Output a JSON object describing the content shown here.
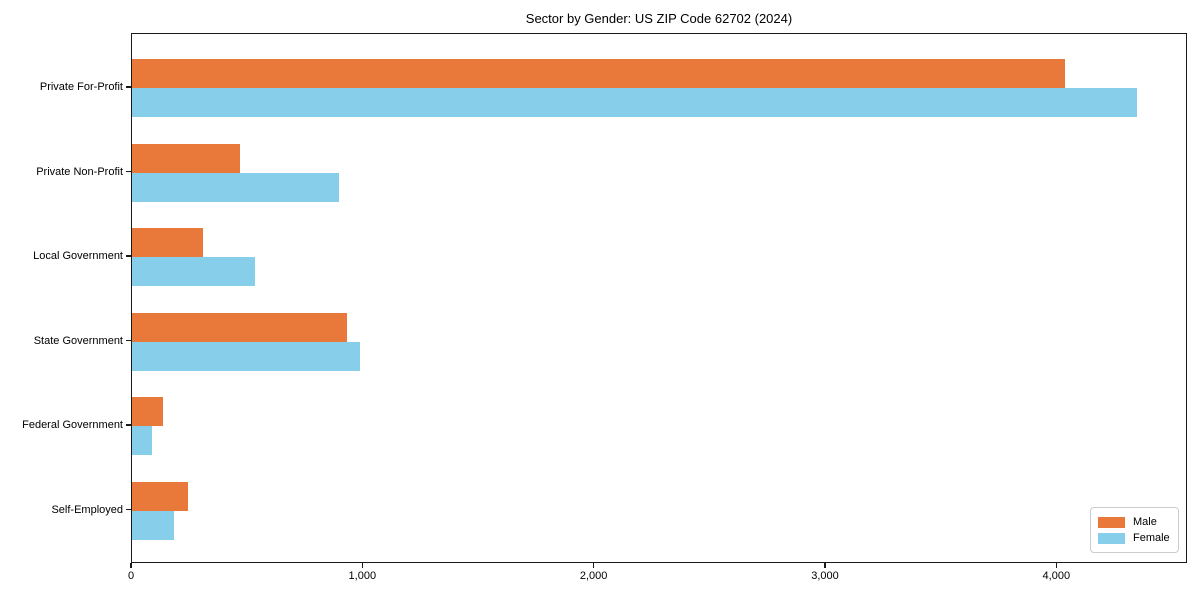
{
  "title": "Sector by Gender: US ZIP Code 62702 (2024)",
  "colors": {
    "male": "#e8793a",
    "female": "#87ceeb",
    "axis": "#1a1a1a",
    "legend_border": "#cccccc",
    "background": "#ffffff"
  },
  "legend": {
    "position": "lower right",
    "entries": [
      "Male",
      "Female"
    ]
  },
  "chart_data": {
    "type": "bar",
    "orientation": "horizontal",
    "title": "Sector by Gender: US ZIP Code 62702 (2024)",
    "xlabel": "",
    "ylabel": "",
    "categories": [
      "Private For-Profit",
      "Private Non-Profit",
      "Local Government",
      "State Government",
      "Federal Government",
      "Self-Employed"
    ],
    "series": [
      {
        "name": "Male",
        "color": "#e8793a",
        "values": [
          4035,
          465,
          305,
          930,
          135,
          240
        ]
      },
      {
        "name": "Female",
        "color": "#87ceeb",
        "values": [
          4345,
          895,
          530,
          985,
          85,
          180
        ]
      }
    ],
    "xlim": [
      0,
      4565
    ],
    "x_ticks": [
      0,
      1000,
      2000,
      3000,
      4000
    ],
    "x_tick_labels": [
      "0",
      "1,000",
      "2,000",
      "3,000",
      "4,000"
    ],
    "grid": false,
    "legend_position": "lower right"
  }
}
